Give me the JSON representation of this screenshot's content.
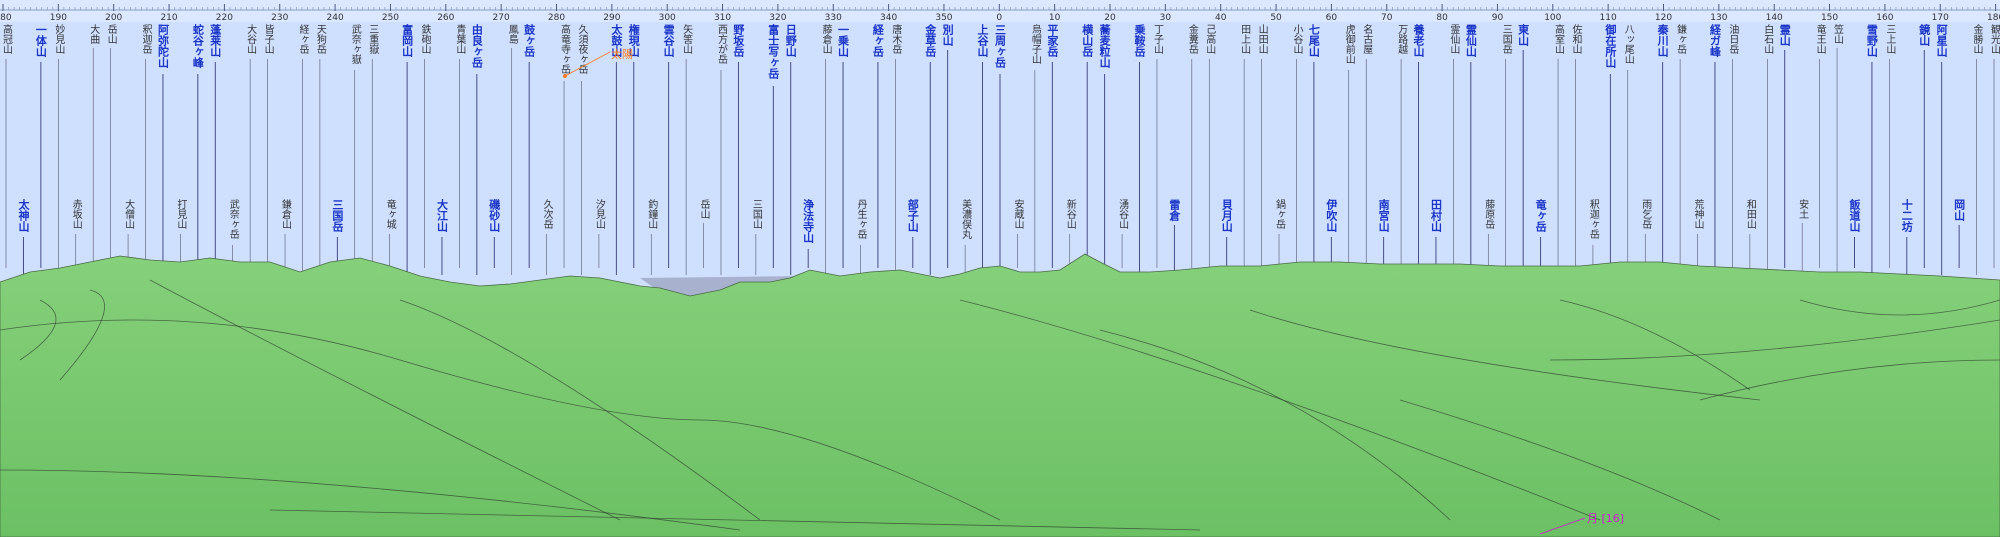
{
  "colors": {
    "sky": "#cfe0ff",
    "ground": "#7dcc72",
    "ridge_dark": "#2e3a2e",
    "label_blue": "#1a35c8",
    "label_gray": "#333333",
    "marker_orange": "#ff7a1a",
    "marker_magenta": "#d017d0"
  },
  "scale": {
    "ticks": [
      "180",
      "190",
      "200",
      "210",
      "220",
      "230",
      "240",
      "250",
      "260",
      "270",
      "280",
      "290",
      "300",
      "310",
      "320",
      "330",
      "340",
      "350",
      "0",
      "10",
      "20",
      "30",
      "40",
      "50",
      "60",
      "70",
      "80",
      "90",
      "100",
      "110",
      "120",
      "130",
      "140",
      "150",
      "160",
      "170",
      "180"
    ]
  },
  "peaks": [
    {
      "name": "高冠山",
      "style": "gray"
    },
    {
      "name": "太神山",
      "style": "blue"
    },
    {
      "name": "一体山",
      "style": "blue"
    },
    {
      "name": "妙見山",
      "style": "gray"
    },
    {
      "name": "赤坂山",
      "style": "gray"
    },
    {
      "name": "大曲",
      "style": "gray"
    },
    {
      "name": "岳山",
      "style": "gray"
    },
    {
      "name": "大僧山",
      "style": "gray"
    },
    {
      "name": "釈迦岳",
      "style": "gray"
    },
    {
      "name": "阿弥陀山",
      "style": "blue"
    },
    {
      "name": "打見山",
      "style": "gray"
    },
    {
      "name": "蛇谷ヶ峰",
      "style": "blue"
    },
    {
      "name": "蓬莱山",
      "style": "blue"
    },
    {
      "name": "武奈ヶ岳",
      "style": "gray"
    },
    {
      "name": "大谷山",
      "style": "gray"
    },
    {
      "name": "皆子山",
      "style": "gray"
    },
    {
      "name": "鎌倉山",
      "style": "gray"
    },
    {
      "name": "経ヶ岳",
      "style": "gray"
    },
    {
      "name": "天狗岳",
      "style": "gray"
    },
    {
      "name": "三国岳",
      "style": "blue"
    },
    {
      "name": "武奈ヶ嶽",
      "style": "gray"
    },
    {
      "name": "三重嶽",
      "style": "gray"
    },
    {
      "name": "竜ヶ城",
      "style": "gray"
    },
    {
      "name": "富岡山",
      "style": "blue"
    },
    {
      "name": "鉄砲山",
      "style": "gray"
    },
    {
      "name": "大江山",
      "style": "blue"
    },
    {
      "name": "青葉山",
      "style": "gray"
    },
    {
      "name": "由良ヶ岳",
      "style": "blue"
    },
    {
      "name": "磯砂山",
      "style": "blue"
    },
    {
      "name": "鳳島",
      "style": "gray"
    },
    {
      "name": "鼓ヶ岳",
      "style": "blue"
    },
    {
      "name": "久次岳",
      "style": "gray"
    },
    {
      "name": "高竜寺ヶ岳",
      "style": "gray"
    },
    {
      "name": "久須夜ヶ岳",
      "style": "gray"
    },
    {
      "name": "汐見山",
      "style": "gray"
    },
    {
      "name": "太鼓山",
      "style": "blue"
    },
    {
      "name": "権現山",
      "style": "blue"
    },
    {
      "name": "釣鐘山",
      "style": "gray"
    },
    {
      "name": "雲谷山",
      "style": "blue"
    },
    {
      "name": "矢筈山",
      "style": "gray"
    },
    {
      "name": "岳山",
      "style": "gray"
    },
    {
      "name": "西方が岳",
      "style": "gray"
    },
    {
      "name": "野坂岳",
      "style": "blue"
    },
    {
      "name": "三国山",
      "style": "gray"
    },
    {
      "name": "富士写ヶ岳",
      "style": "blue"
    },
    {
      "name": "日野山",
      "style": "blue"
    },
    {
      "name": "浄法寺山",
      "style": "blue"
    },
    {
      "name": "藤倉山",
      "style": "gray"
    },
    {
      "name": "一乗山",
      "style": "blue"
    },
    {
      "name": "丹生ヶ岳",
      "style": "gray"
    },
    {
      "name": "経ヶ岳",
      "style": "blue"
    },
    {
      "name": "唐木岳",
      "style": "gray"
    },
    {
      "name": "部子山",
      "style": "blue"
    },
    {
      "name": "金草岳",
      "style": "blue"
    },
    {
      "name": "別山",
      "style": "blue"
    },
    {
      "name": "美濃俣丸",
      "style": "gray"
    },
    {
      "name": "上谷山",
      "style": "blue"
    },
    {
      "name": "三周ヶ岳",
      "style": "blue"
    },
    {
      "name": "安蔵山",
      "style": "gray"
    },
    {
      "name": "烏帽子山",
      "style": "gray"
    },
    {
      "name": "平家岳",
      "style": "blue"
    },
    {
      "name": "新谷山",
      "style": "gray"
    },
    {
      "name": "横山岳",
      "style": "blue"
    },
    {
      "name": "蕎麦粒山",
      "style": "blue"
    },
    {
      "name": "湧谷山",
      "style": "gray"
    },
    {
      "name": "乗鞍岳",
      "style": "blue"
    },
    {
      "name": "丁子山",
      "style": "gray"
    },
    {
      "name": "雷倉",
      "style": "blue"
    },
    {
      "name": "金糞岳",
      "style": "gray"
    },
    {
      "name": "己高山",
      "style": "gray"
    },
    {
      "name": "貝月山",
      "style": "blue"
    },
    {
      "name": "田上山",
      "style": "gray"
    },
    {
      "name": "山田山",
      "style": "gray"
    },
    {
      "name": "鍋ヶ岳",
      "style": "gray"
    },
    {
      "name": "小谷山",
      "style": "gray"
    },
    {
      "name": "七尾山",
      "style": "blue"
    },
    {
      "name": "伊吹山",
      "style": "blue"
    },
    {
      "name": "虎御前山",
      "style": "gray"
    },
    {
      "name": "名古屋",
      "style": "gray"
    },
    {
      "name": "南宮山",
      "style": "blue"
    },
    {
      "name": "万路越",
      "style": "gray"
    },
    {
      "name": "養老山",
      "style": "blue"
    },
    {
      "name": "田村山",
      "style": "blue"
    },
    {
      "name": "霊仙山",
      "style": "gray"
    },
    {
      "name": "霊仙山",
      "style": "blue"
    },
    {
      "name": "藤原岳",
      "style": "gray"
    },
    {
      "name": "三国岳",
      "style": "gray"
    },
    {
      "name": "東山",
      "style": "blue"
    },
    {
      "name": "竜ヶ岳",
      "style": "blue"
    },
    {
      "name": "高室山",
      "style": "gray"
    },
    {
      "name": "佐和山",
      "style": "gray"
    },
    {
      "name": "釈迦ヶ岳",
      "style": "gray"
    },
    {
      "name": "御在所山",
      "style": "blue"
    },
    {
      "name": "八ッ尾山",
      "style": "gray"
    },
    {
      "name": "雨乞岳",
      "style": "gray"
    },
    {
      "name": "秦川山",
      "style": "blue"
    },
    {
      "name": "鎌ヶ岳",
      "style": "gray"
    },
    {
      "name": "荒神山",
      "style": "gray"
    },
    {
      "name": "経ガ峰",
      "style": "blue"
    },
    {
      "name": "油日岳",
      "style": "gray"
    },
    {
      "name": "和田山",
      "style": "gray"
    },
    {
      "name": "白石山",
      "style": "gray"
    },
    {
      "name": "霊山",
      "style": "blue"
    },
    {
      "name": "安土",
      "style": "gray"
    },
    {
      "name": "竜王山",
      "style": "gray"
    },
    {
      "name": "笠山",
      "style": "gray"
    },
    {
      "name": "飯道山",
      "style": "blue"
    },
    {
      "name": "雪野山",
      "style": "blue"
    },
    {
      "name": "三上山",
      "style": "gray"
    },
    {
      "name": "十二坊",
      "style": "blue"
    },
    {
      "name": "鏡山",
      "style": "blue"
    },
    {
      "name": "阿星山",
      "style": "blue"
    },
    {
      "name": "岡山",
      "style": "blue"
    },
    {
      "name": "金勝山",
      "style": "gray"
    },
    {
      "name": "観光山",
      "style": "gray"
    }
  ],
  "markers": [
    {
      "label": "太陽",
      "kind": "sun"
    },
    {
      "label": "月 [16]",
      "kind": "moon"
    }
  ]
}
